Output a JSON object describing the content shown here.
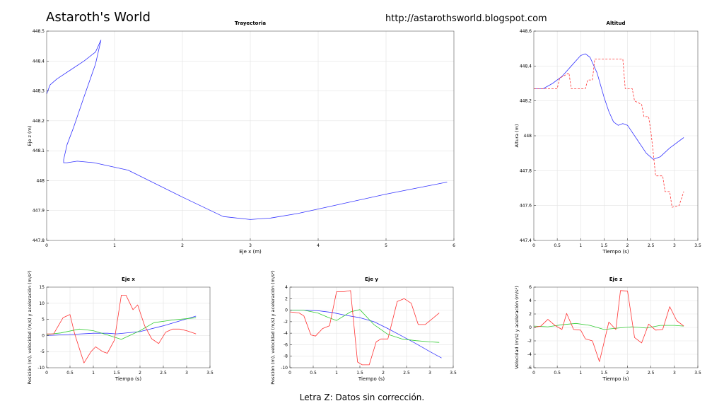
{
  "header": {
    "title": "Astaroth's World",
    "url": "http://astarothsworld.blogspot.com"
  },
  "caption": "Letra Z: Datos sin corrección.",
  "colors": {
    "blue": "#3333ff",
    "red": "#ff3333",
    "green": "#33cc33",
    "grid": "#e3e3e3",
    "axis": "#000000"
  },
  "chart_data": [
    {
      "id": "trayectoria",
      "type": "line",
      "title": "Trayectoria",
      "xlabel": "Eje x (m)",
      "ylabel": "Eje z (m)",
      "xlim": [
        0,
        6
      ],
      "ylim": [
        447.8,
        448.5
      ],
      "xticks": [
        0,
        1,
        2,
        3,
        4,
        5,
        6
      ],
      "yticks": [
        447.8,
        447.9,
        448,
        448.1,
        448.2,
        448.3,
        448.4,
        448.5
      ],
      "xtick_labels": [
        "0",
        "1",
        "2",
        "3",
        "4",
        "5",
        "6"
      ],
      "ytick_labels": [
        "447.8",
        "447.9",
        "448",
        "448.1",
        "448.2",
        "448.3",
        "448.4",
        "448.5"
      ],
      "grid": true,
      "series": [
        {
          "color": "blue",
          "dash": "solid",
          "x": [
            0.0,
            0.05,
            0.15,
            0.35,
            0.55,
            0.72,
            0.8,
            0.72,
            0.55,
            0.4,
            0.3,
            0.25,
            0.25,
            0.3,
            0.45,
            0.7,
            1.2,
            2.0,
            2.6,
            3.0,
            3.3,
            3.7,
            4.2,
            5.0,
            5.9
          ],
          "y": [
            448.29,
            448.32,
            448.34,
            448.37,
            448.4,
            448.43,
            448.47,
            448.39,
            448.28,
            448.18,
            448.12,
            448.07,
            448.06,
            448.06,
            448.065,
            448.06,
            448.035,
            447.945,
            447.88,
            447.87,
            447.875,
            447.89,
            447.915,
            447.955,
            447.995
          ]
        }
      ]
    },
    {
      "id": "altitud",
      "type": "line",
      "title": "Altitud",
      "xlabel": "Tiempo (s)",
      "ylabel": "Altura (m)",
      "xlim": [
        0,
        3.5
      ],
      "ylim": [
        447.4,
        448.6
      ],
      "xticks": [
        0,
        0.5,
        1,
        1.5,
        2,
        2.5,
        3,
        3.5
      ],
      "yticks": [
        447.4,
        447.6,
        447.8,
        448,
        448.2,
        448.4,
        448.6
      ],
      "xtick_labels": [
        "0",
        "0.5",
        "1",
        "1.5",
        "2",
        "2.5",
        "3",
        "3.5"
      ],
      "ytick_labels": [
        "447.4",
        "447.6",
        "447.8",
        "448",
        "448.2",
        "448.4",
        "448.6"
      ],
      "grid": true,
      "series": [
        {
          "color": "blue",
          "dash": "solid",
          "x": [
            0,
            0.2,
            0.4,
            0.6,
            0.8,
            1.0,
            1.1,
            1.2,
            1.35,
            1.5,
            1.6,
            1.7,
            1.8,
            1.9,
            2.0,
            2.2,
            2.4,
            2.55,
            2.7,
            2.9,
            3.2
          ],
          "y": [
            448.27,
            448.27,
            448.3,
            448.34,
            448.4,
            448.46,
            448.47,
            448.45,
            448.36,
            448.22,
            448.14,
            448.08,
            448.06,
            448.07,
            448.06,
            447.98,
            447.9,
            447.865,
            447.88,
            447.93,
            447.99
          ]
        },
        {
          "color": "red",
          "dash": "dashed",
          "x": [
            0,
            0.5,
            0.55,
            0.75,
            0.8,
            1.1,
            1.15,
            1.25,
            1.3,
            1.9,
            1.95,
            2.1,
            2.15,
            2.3,
            2.35,
            2.45,
            2.5,
            2.55,
            2.6,
            2.75,
            2.8,
            2.9,
            2.95,
            3.1,
            3.2
          ],
          "y": [
            448.27,
            448.27,
            448.33,
            448.36,
            448.27,
            448.27,
            448.32,
            448.32,
            448.44,
            448.44,
            448.27,
            448.27,
            448.2,
            448.18,
            448.11,
            448.11,
            448.02,
            447.9,
            447.77,
            447.77,
            447.68,
            447.68,
            447.59,
            447.6,
            447.68
          ]
        }
      ]
    },
    {
      "id": "ejex",
      "type": "line",
      "title": "Eje x",
      "xlabel": "Tiempo (s)",
      "ylabel": "Posición (m), velocidad (m/s) y aceleración (m/s²)",
      "xlim": [
        0,
        3.5
      ],
      "ylim": [
        -10,
        15
      ],
      "xticks": [
        0,
        0.5,
        1,
        1.5,
        2,
        2.5,
        3,
        3.5
      ],
      "yticks": [
        -10,
        -5,
        0,
        5,
        10,
        15
      ],
      "xtick_labels": [
        "0",
        "0.5",
        "1",
        "1.5",
        "2",
        "2.5",
        "3",
        "3.5"
      ],
      "ytick_labels": [
        "-10",
        "-5",
        "0",
        "5",
        "10",
        "15"
      ],
      "grid": true,
      "series": [
        {
          "color": "blue",
          "dash": "solid",
          "x": [
            0,
            0.5,
            1.0,
            1.3,
            1.5,
            2.0,
            2.5,
            3.2
          ],
          "y": [
            0,
            0.3,
            0.7,
            0.7,
            0.5,
            1.2,
            3.0,
            6.0
          ]
        },
        {
          "color": "green",
          "dash": "solid",
          "x": [
            0,
            0.3,
            0.7,
            1.0,
            1.3,
            1.6,
            2.0,
            2.3,
            2.7,
            3.2
          ],
          "y": [
            0.3,
            0.8,
            2.0,
            1.5,
            0.2,
            -1.2,
            1.5,
            4.0,
            4.8,
            5.5
          ]
        },
        {
          "color": "red",
          "dash": "solid",
          "x": [
            0,
            0.15,
            0.35,
            0.5,
            0.6,
            0.8,
            0.95,
            1.05,
            1.2,
            1.3,
            1.45,
            1.6,
            1.7,
            1.85,
            1.95,
            2.1,
            2.25,
            2.4,
            2.55,
            2.7,
            2.85,
            3.0,
            3.2
          ],
          "y": [
            0.5,
            0.5,
            5.5,
            6.5,
            0.5,
            -8.5,
            -5.0,
            -3.5,
            -5.0,
            -5.5,
            -1.5,
            12.5,
            12.5,
            8.0,
            9.5,
            3.0,
            -1.0,
            -2.5,
            1.0,
            2.0,
            2.0,
            1.5,
            0.5
          ]
        }
      ]
    },
    {
      "id": "ejey",
      "type": "line",
      "title": "Eje y",
      "xlabel": "Tiempo (s)",
      "ylabel": "Posición (m), velocidad (m/s) y aceleración (m/s²)",
      "xlim": [
        0,
        3.5
      ],
      "ylim": [
        -10,
        4
      ],
      "xticks": [
        0,
        0.5,
        1,
        1.5,
        2,
        2.5,
        3,
        3.5
      ],
      "yticks": [
        -10,
        -8,
        -6,
        -4,
        -2,
        0,
        2,
        4
      ],
      "xtick_labels": [
        "0",
        "0.5",
        "1",
        "1.5",
        "2",
        "2.5",
        "3",
        "3.5"
      ],
      "ytick_labels": [
        "-10",
        "-8",
        "-6",
        "-4",
        "-2",
        "0",
        "2",
        "4"
      ],
      "grid": true,
      "series": [
        {
          "color": "blue",
          "dash": "solid",
          "x": [
            0,
            0.3,
            0.6,
            0.9,
            1.2,
            1.5,
            1.8,
            2.1,
            2.4,
            2.7,
            3.0,
            3.25
          ],
          "y": [
            0,
            0,
            -0.1,
            -0.4,
            -0.9,
            -1.3,
            -2.0,
            -3.2,
            -4.5,
            -5.8,
            -7.2,
            -8.3
          ]
        },
        {
          "color": "green",
          "dash": "solid",
          "x": [
            0,
            0.3,
            0.6,
            0.8,
            1.0,
            1.3,
            1.5,
            1.8,
            2.1,
            2.4,
            2.7,
            3.0,
            3.2
          ],
          "y": [
            0,
            0,
            -0.5,
            -1.2,
            -1.8,
            -0.3,
            0.1,
            -2.5,
            -4.2,
            -5.0,
            -5.3,
            -5.5,
            -5.6
          ]
        },
        {
          "color": "red",
          "dash": "solid",
          "x": [
            0,
            0.2,
            0.3,
            0.45,
            0.55,
            0.7,
            0.85,
            1.0,
            1.15,
            1.3,
            1.45,
            1.55,
            1.7,
            1.85,
            1.95,
            2.1,
            2.3,
            2.45,
            2.6,
            2.75,
            2.9,
            3.05,
            3.2
          ],
          "y": [
            -0.3,
            -0.5,
            -1.0,
            -4.3,
            -4.5,
            -3.2,
            -2.7,
            3.2,
            3.2,
            3.4,
            -9.0,
            -9.5,
            -9.5,
            -5.5,
            -5.0,
            -5.0,
            1.5,
            2.0,
            1.2,
            -2.5,
            -2.5,
            -1.5,
            -0.5
          ]
        }
      ]
    },
    {
      "id": "ejez",
      "type": "line",
      "title": "Eje z",
      "xlabel": "Tiempo (s)",
      "ylabel": "Velocidad (m/s) y aceleración (m/s²)",
      "xlim": [
        0,
        3.5
      ],
      "ylim": [
        -6,
        6
      ],
      "xticks": [
        0,
        0.5,
        1,
        1.5,
        2,
        2.5,
        3,
        3.5
      ],
      "yticks": [
        -6,
        -4,
        -2,
        0,
        2,
        4,
        6
      ],
      "xtick_labels": [
        "0",
        "0.5",
        "1",
        "1.5",
        "2",
        "2.5",
        "3",
        "3.5"
      ],
      "ytick_labels": [
        "-6",
        "-4",
        "-2",
        "0",
        "2",
        "4",
        "6"
      ],
      "grid": true,
      "series": [
        {
          "color": "green",
          "dash": "solid",
          "x": [
            0,
            0.3,
            0.6,
            0.9,
            1.2,
            1.5,
            1.8,
            2.1,
            2.4,
            2.7,
            3.0,
            3.2
          ],
          "y": [
            0.2,
            0.1,
            0.4,
            0.6,
            0.3,
            -0.3,
            -0.1,
            0.1,
            -0.1,
            0.3,
            0.3,
            0.2
          ]
        },
        {
          "color": "red",
          "dash": "solid",
          "x": [
            0,
            0.15,
            0.3,
            0.45,
            0.6,
            0.7,
            0.85,
            1.0,
            1.1,
            1.25,
            1.4,
            1.5,
            1.6,
            1.75,
            1.85,
            2.0,
            2.15,
            2.3,
            2.45,
            2.6,
            2.75,
            2.9,
            3.05,
            3.2
          ],
          "y": [
            0,
            0.2,
            1.2,
            0.3,
            -0.3,
            2.1,
            -0.3,
            -0.4,
            -1.7,
            -2.0,
            -5.1,
            -2.2,
            0.8,
            -0.3,
            5.5,
            5.4,
            -1.5,
            -2.3,
            0.5,
            -0.4,
            -0.3,
            3.1,
            1.0,
            0.2
          ]
        }
      ]
    }
  ]
}
